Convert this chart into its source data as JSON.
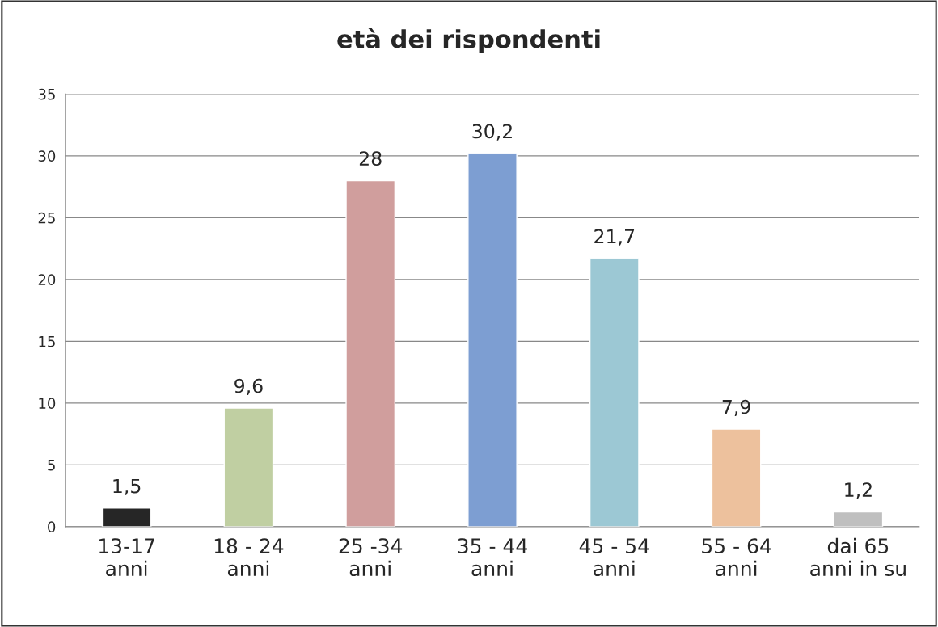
{
  "chart_data": {
    "type": "bar",
    "title": "età dei rispondenti",
    "categories": [
      "13-17\nanni",
      "18 - 24\nanni",
      "25 -34\nanni",
      "35 - 44\nanni",
      "45 - 54\nanni",
      "55 - 64\nanni",
      "dai 65\nanni in su"
    ],
    "values": [
      1.5,
      9.6,
      28,
      30.2,
      21.7,
      7.9,
      1.2
    ],
    "value_labels": [
      "1,5",
      "9,6",
      "28",
      "30,2",
      "21,7",
      "7,9",
      "1,2"
    ],
    "colors": [
      "#262626",
      "#c3d69b",
      "#d99694",
      "#6f9be0",
      "#93cddd",
      "#fac090",
      "#bfbfbf"
    ],
    "ylim": [
      0,
      35
    ],
    "yticks": [
      0,
      5,
      10,
      15,
      20,
      25,
      30,
      35
    ],
    "grid": "y",
    "legend": false
  }
}
